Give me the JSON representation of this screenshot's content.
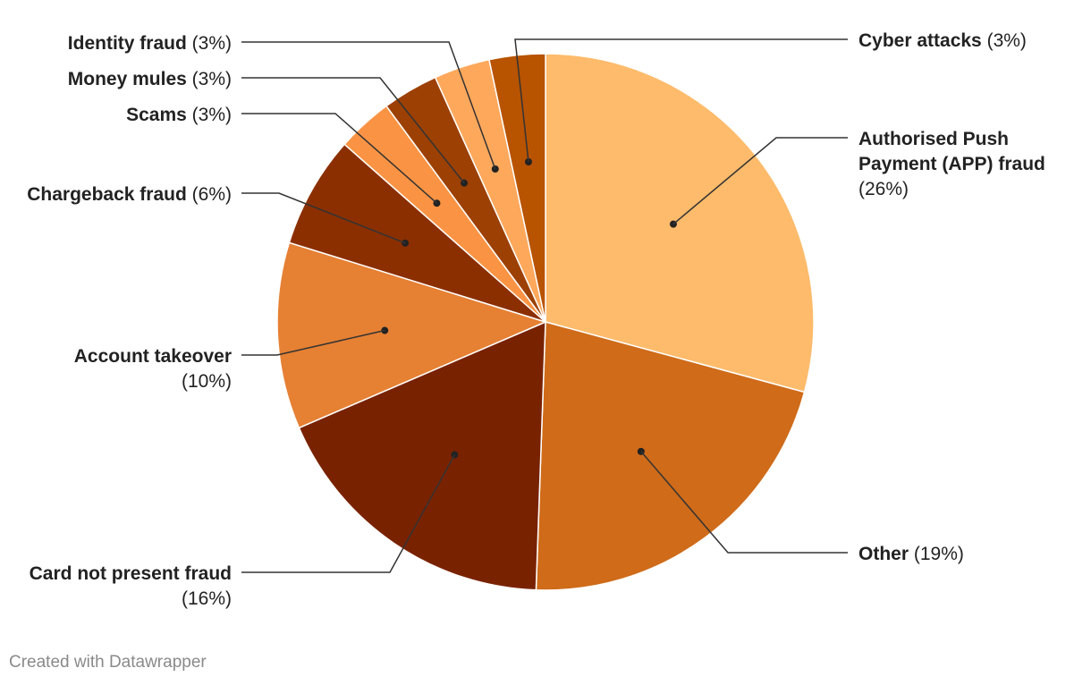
{
  "chart_data": {
    "type": "pie",
    "slices": [
      {
        "label": "Authorised Push Payment (APP) fraud",
        "value": 26,
        "value_label": "(26%)",
        "color": "#FDBB6B"
      },
      {
        "label": "Other",
        "value": 19,
        "value_label": "(19%)",
        "color": "#CF6B19"
      },
      {
        "label": "Card not present fraud",
        "value": 16,
        "value_label": "(16%)",
        "color": "#792200"
      },
      {
        "label": "Account takeover",
        "value": 10,
        "value_label": "(10%)",
        "color": "#E68033"
      },
      {
        "label": "Chargeback fraud",
        "value": 6,
        "value_label": "(6%)",
        "color": "#8B2F00"
      },
      {
        "label": "Scams",
        "value": 3,
        "value_label": "(3%)",
        "color": "#FA9444"
      },
      {
        "label": "Money mules",
        "value": 3,
        "value_label": "(3%)",
        "color": "#9C4004"
      },
      {
        "label": "Identity fraud",
        "value": 3,
        "value_label": "(3%)",
        "color": "#FEA85C"
      },
      {
        "label": "Cyber attacks",
        "value": 3,
        "value_label": "(3%)",
        "color": "#B85300"
      }
    ]
  },
  "footer": "Created with Datawrapper"
}
